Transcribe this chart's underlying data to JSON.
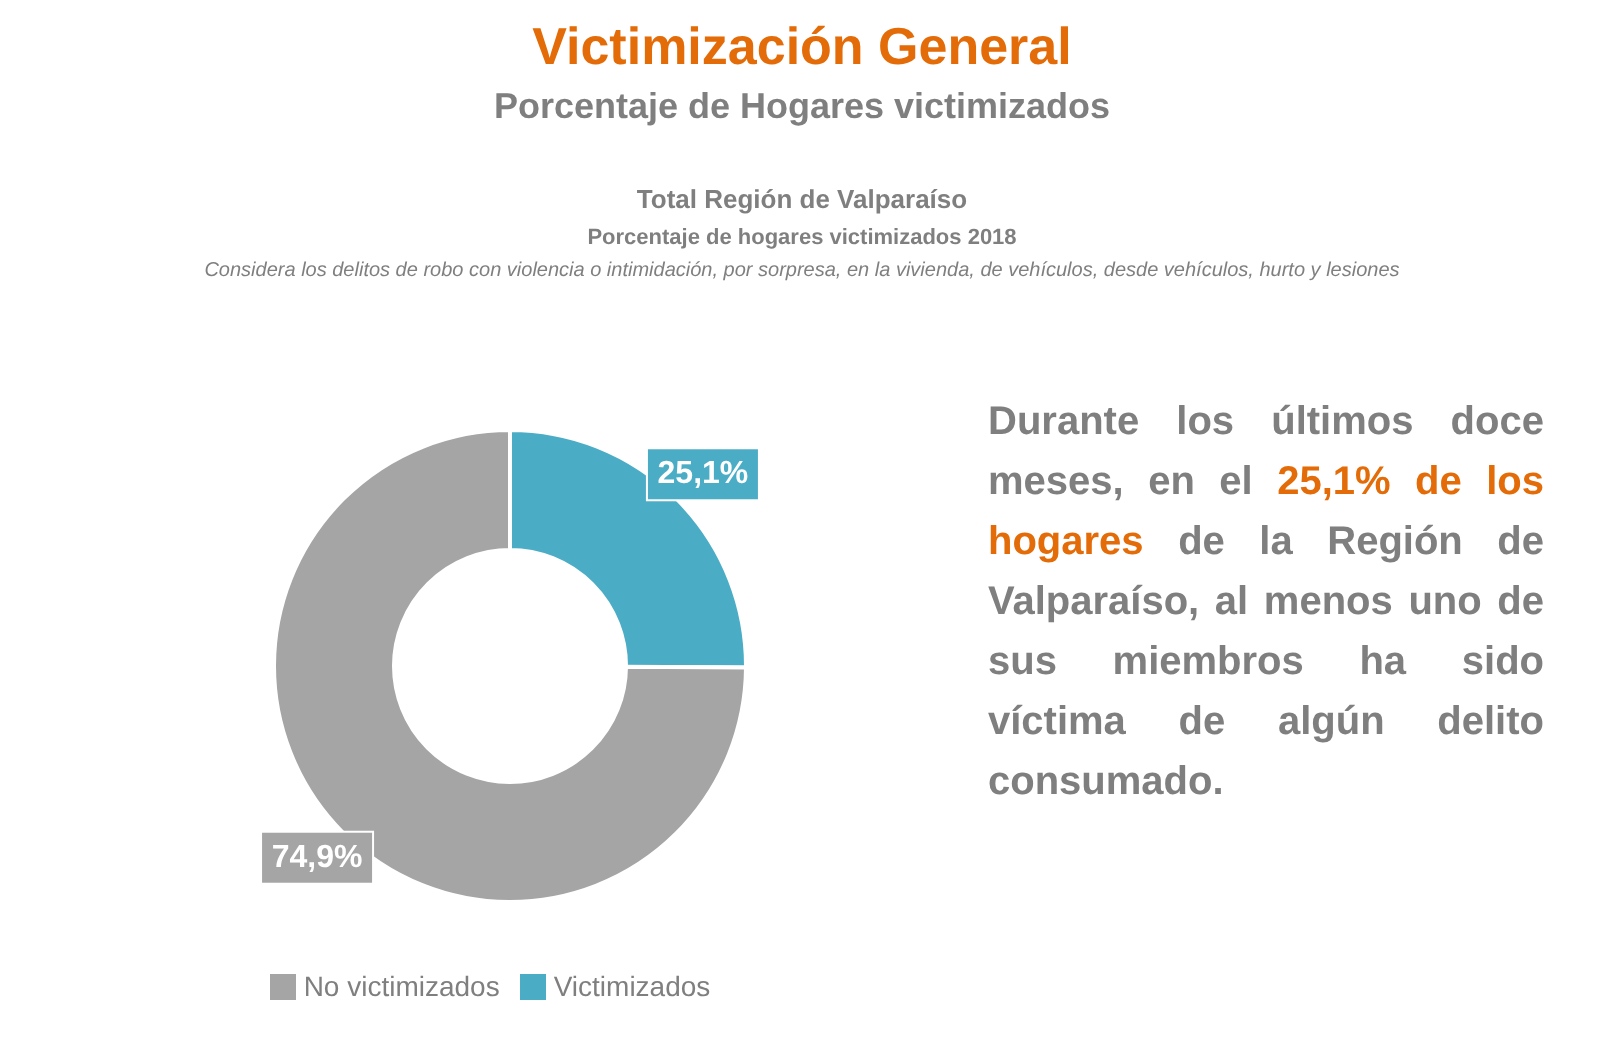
{
  "chart_data": {
    "type": "donut",
    "title": "Victimización General",
    "subtitle": "Porcentaje de Hogares victimizados",
    "annotations": [
      "Total Región de Valparaíso",
      "Porcentaje de hogares victimizados 2018",
      "Considera los delitos de robo con violencia o intimidación, por sorpresa, en la vivienda, de vehículos, desde vehículos, hurto y lesiones",
      "Durante los últimos doce meses, en el ",
      "25,1% de los hogares",
      " de la Región de Valparaíso, al menos uno de sus miembros ha sido víctima de algún delito consumado."
    ],
    "categories": [
      "Victimizados",
      "No victimizados"
    ],
    "values": [
      25.1,
      74.9
    ],
    "colors": [
      "#4bacc6",
      "#a5a5a5"
    ],
    "value_labels": [
      "25,1%",
      "74,9%"
    ],
    "legend": "bottom"
  }
}
